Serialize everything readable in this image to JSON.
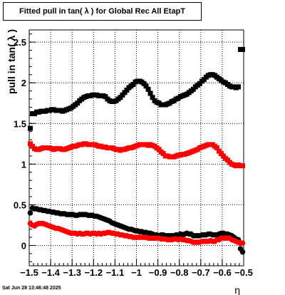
{
  "title": "Fitted pull in tan( λ ) for Global Rec All EtapT",
  "timestamp": "Sat Jun 28 13:46:48 2025",
  "chart_data": {
    "type": "scatter",
    "title": "Fitted pull in tan( λ ) for Global Rec All EtapT",
    "xlabel": "η",
    "ylabel": "pull in tan( λ )",
    "xlim": [
      -1.5,
      -0.5
    ],
    "ylim": [
      -0.25,
      2.65
    ],
    "xticks": [
      -1.5,
      -1.4,
      -1.3,
      -1.2,
      -1.1,
      -1.0,
      -0.9,
      -0.8,
      -0.7,
      -0.6,
      -0.5
    ],
    "xtick_labels": [
      "−1.5",
      "−1.4",
      "−1.3",
      "−1.2",
      "−1.1",
      "−1",
      "−0.9",
      "−0.8",
      "−0.7",
      "−0.6",
      "−0.5"
    ],
    "yticks": [
      0,
      0.5,
      1,
      1.5,
      2,
      2.5
    ],
    "ytick_labels": [
      "0",
      "0.5",
      "1",
      "1.5",
      "2",
      "2.5"
    ],
    "grid": true,
    "series": [
      {
        "marker": "square",
        "color": "#000000",
        "x": [
          -1.495,
          -1.485,
          -1.475,
          -1.465,
          -1.455,
          -1.445,
          -1.435,
          -1.425,
          -1.415,
          -1.405,
          -1.395,
          -1.385,
          -1.375,
          -1.365,
          -1.355,
          -1.345,
          -1.335,
          -1.325,
          -1.315,
          -1.305,
          -1.295,
          -1.285,
          -1.275,
          -1.265,
          -1.255,
          -1.245,
          -1.235,
          -1.225,
          -1.215,
          -1.205,
          -1.195,
          -1.185,
          -1.175,
          -1.165,
          -1.155,
          -1.145,
          -1.135,
          -1.125,
          -1.115,
          -1.105,
          -1.095,
          -1.085,
          -1.075,
          -1.065,
          -1.055,
          -1.045,
          -1.035,
          -1.025,
          -1.015,
          -1.005,
          -0.995,
          -0.985,
          -0.975,
          -0.965,
          -0.955,
          -0.945,
          -0.935,
          -0.925,
          -0.915,
          -0.905,
          -0.895,
          -0.885,
          -0.875,
          -0.865,
          -0.855,
          -0.845,
          -0.835,
          -0.825,
          -0.815,
          -0.805,
          -0.795,
          -0.785,
          -0.775,
          -0.765,
          -0.755,
          -0.745,
          -0.735,
          -0.725,
          -0.715,
          -0.705,
          -0.695,
          -0.685,
          -0.675,
          -0.665,
          -0.655,
          -0.645,
          -0.635,
          -0.625,
          -0.615,
          -0.605,
          -0.595,
          -0.585,
          -0.575,
          -0.565,
          -0.555,
          -0.545,
          -0.535,
          -0.525,
          -0.515,
          -0.505
        ],
        "y": [
          1.44,
          1.62,
          1.62,
          1.64,
          1.64,
          1.65,
          1.65,
          1.65,
          1.66,
          1.66,
          1.67,
          1.67,
          1.66,
          1.66,
          1.66,
          1.65,
          1.66,
          1.67,
          1.68,
          1.69,
          1.71,
          1.73,
          1.75,
          1.78,
          1.8,
          1.82,
          1.83,
          1.84,
          1.84,
          1.85,
          1.85,
          1.85,
          1.84,
          1.84,
          1.84,
          1.83,
          1.8,
          1.78,
          1.77,
          1.77,
          1.78,
          1.8,
          1.82,
          1.85,
          1.88,
          1.91,
          1.94,
          1.96,
          1.98,
          2.01,
          2.02,
          2.02,
          2.01,
          1.99,
          1.96,
          1.92,
          1.87,
          1.82,
          1.78,
          1.76,
          1.75,
          1.73,
          1.73,
          1.73,
          1.74,
          1.75,
          1.77,
          1.78,
          1.8,
          1.81,
          1.83,
          1.84,
          1.85,
          1.86,
          1.88,
          1.9,
          1.92,
          1.95,
          1.97,
          1.99,
          2.02,
          2.04,
          2.07,
          2.09,
          2.1,
          2.1,
          2.09,
          2.07,
          2.05,
          2.03,
          2.01,
          2.0,
          1.98,
          1.96,
          1.95,
          1.95,
          1.94,
          1.95,
          2.41,
          2.41
        ]
      },
      {
        "marker": "square",
        "color": "#ff0000",
        "x": [
          -1.495,
          -1.485,
          -1.475,
          -1.465,
          -1.455,
          -1.445,
          -1.435,
          -1.425,
          -1.415,
          -1.405,
          -1.395,
          -1.385,
          -1.375,
          -1.365,
          -1.355,
          -1.345,
          -1.335,
          -1.325,
          -1.315,
          -1.305,
          -1.295,
          -1.285,
          -1.275,
          -1.265,
          -1.255,
          -1.245,
          -1.235,
          -1.225,
          -1.215,
          -1.205,
          -1.195,
          -1.185,
          -1.175,
          -1.165,
          -1.155,
          -1.145,
          -1.135,
          -1.125,
          -1.115,
          -1.105,
          -1.095,
          -1.085,
          -1.075,
          -1.065,
          -1.055,
          -1.045,
          -1.035,
          -1.025,
          -1.015,
          -1.005,
          -0.995,
          -0.985,
          -0.975,
          -0.965,
          -0.955,
          -0.945,
          -0.935,
          -0.925,
          -0.915,
          -0.905,
          -0.895,
          -0.885,
          -0.875,
          -0.865,
          -0.855,
          -0.845,
          -0.835,
          -0.825,
          -0.815,
          -0.805,
          -0.795,
          -0.785,
          -0.775,
          -0.765,
          -0.755,
          -0.745,
          -0.735,
          -0.725,
          -0.715,
          -0.705,
          -0.695,
          -0.685,
          -0.675,
          -0.665,
          -0.655,
          -0.645,
          -0.635,
          -0.625,
          -0.615,
          -0.605,
          -0.595,
          -0.585,
          -0.575,
          -0.565,
          -0.555,
          -0.545,
          -0.535,
          -0.525,
          -0.515,
          -0.505
        ],
        "y": [
          1.25,
          1.22,
          1.19,
          1.18,
          1.18,
          1.19,
          1.2,
          1.2,
          1.2,
          1.2,
          1.19,
          1.18,
          1.19,
          1.19,
          1.19,
          1.18,
          1.18,
          1.19,
          1.2,
          1.21,
          1.22,
          1.22,
          1.23,
          1.24,
          1.24,
          1.25,
          1.25,
          1.24,
          1.24,
          1.24,
          1.24,
          1.23,
          1.22,
          1.22,
          1.21,
          1.21,
          1.2,
          1.2,
          1.2,
          1.19,
          1.18,
          1.18,
          1.17,
          1.18,
          1.18,
          1.19,
          1.2,
          1.2,
          1.21,
          1.22,
          1.23,
          1.24,
          1.24,
          1.24,
          1.24,
          1.23,
          1.24,
          1.23,
          1.22,
          1.2,
          1.18,
          1.15,
          1.13,
          1.1,
          1.1,
          1.09,
          1.09,
          1.09,
          1.1,
          1.11,
          1.11,
          1.12,
          1.12,
          1.13,
          1.14,
          1.15,
          1.16,
          1.17,
          1.18,
          1.2,
          1.21,
          1.22,
          1.23,
          1.24,
          1.24,
          1.24,
          1.22,
          1.2,
          1.16,
          1.13,
          1.1,
          1.07,
          1.05,
          1.02,
          1.0,
          0.99,
          0.98,
          0.99,
          0.98,
          0.98
        ]
      },
      {
        "marker": "circle",
        "color": "#000000",
        "x": [
          -1.495,
          -1.485,
          -1.475,
          -1.465,
          -1.455,
          -1.445,
          -1.435,
          -1.425,
          -1.415,
          -1.405,
          -1.395,
          -1.385,
          -1.375,
          -1.365,
          -1.355,
          -1.345,
          -1.335,
          -1.325,
          -1.315,
          -1.305,
          -1.295,
          -1.285,
          -1.275,
          -1.265,
          -1.255,
          -1.245,
          -1.235,
          -1.225,
          -1.215,
          -1.205,
          -1.195,
          -1.185,
          -1.175,
          -1.165,
          -1.155,
          -1.145,
          -1.135,
          -1.125,
          -1.115,
          -1.105,
          -1.095,
          -1.085,
          -1.075,
          -1.065,
          -1.055,
          -1.045,
          -1.035,
          -1.025,
          -1.015,
          -1.005,
          -0.995,
          -0.985,
          -0.975,
          -0.965,
          -0.955,
          -0.945,
          -0.935,
          -0.925,
          -0.915,
          -0.905,
          -0.895,
          -0.885,
          -0.875,
          -0.865,
          -0.855,
          -0.845,
          -0.835,
          -0.825,
          -0.815,
          -0.805,
          -0.795,
          -0.785,
          -0.775,
          -0.765,
          -0.755,
          -0.745,
          -0.735,
          -0.725,
          -0.715,
          -0.705,
          -0.695,
          -0.685,
          -0.675,
          -0.665,
          -0.655,
          -0.645,
          -0.635,
          -0.625,
          -0.615,
          -0.605,
          -0.595,
          -0.585,
          -0.575,
          -0.565,
          -0.555,
          -0.545,
          -0.535,
          -0.525,
          -0.515,
          -0.505
        ],
        "y": [
          0.4,
          0.46,
          0.45,
          0.45,
          0.44,
          0.44,
          0.43,
          0.43,
          0.42,
          0.42,
          0.41,
          0.41,
          0.4,
          0.4,
          0.39,
          0.39,
          0.39,
          0.38,
          0.38,
          0.38,
          0.38,
          0.37,
          0.37,
          0.38,
          0.38,
          0.38,
          0.38,
          0.37,
          0.37,
          0.37,
          0.36,
          0.36,
          0.35,
          0.34,
          0.33,
          0.32,
          0.31,
          0.3,
          0.28,
          0.27,
          0.26,
          0.25,
          0.24,
          0.23,
          0.22,
          0.21,
          0.2,
          0.2,
          0.19,
          0.18,
          0.18,
          0.17,
          0.17,
          0.16,
          0.16,
          0.15,
          0.15,
          0.14,
          0.13,
          0.13,
          0.12,
          0.13,
          0.13,
          0.12,
          0.12,
          0.12,
          0.12,
          0.12,
          0.13,
          0.13,
          0.14,
          0.13,
          0.14,
          0.15,
          0.14,
          0.14,
          0.12,
          0.12,
          0.12,
          0.12,
          0.13,
          0.13,
          0.13,
          0.14,
          0.14,
          0.13,
          0.13,
          0.13,
          0.14,
          0.15,
          0.15,
          0.14,
          0.14,
          0.13,
          0.12,
          0.1,
          0.08,
          0.07,
          -0.04,
          -0.08
        ]
      },
      {
        "marker": "circle",
        "color": "#ff0000",
        "x": [
          -1.495,
          -1.485,
          -1.475,
          -1.465,
          -1.455,
          -1.445,
          -1.435,
          -1.425,
          -1.415,
          -1.405,
          -1.395,
          -1.385,
          -1.375,
          -1.365,
          -1.355,
          -1.345,
          -1.335,
          -1.325,
          -1.315,
          -1.305,
          -1.295,
          -1.285,
          -1.275,
          -1.265,
          -1.255,
          -1.245,
          -1.235,
          -1.225,
          -1.215,
          -1.205,
          -1.195,
          -1.185,
          -1.175,
          -1.165,
          -1.155,
          -1.145,
          -1.135,
          -1.125,
          -1.115,
          -1.105,
          -1.095,
          -1.085,
          -1.075,
          -1.065,
          -1.055,
          -1.045,
          -1.035,
          -1.025,
          -1.015,
          -1.005,
          -0.995,
          -0.985,
          -0.975,
          -0.965,
          -0.955,
          -0.945,
          -0.935,
          -0.925,
          -0.915,
          -0.905,
          -0.895,
          -0.885,
          -0.875,
          -0.865,
          -0.855,
          -0.845,
          -0.835,
          -0.825,
          -0.815,
          -0.805,
          -0.795,
          -0.785,
          -0.775,
          -0.765,
          -0.755,
          -0.745,
          -0.735,
          -0.725,
          -0.715,
          -0.705,
          -0.695,
          -0.685,
          -0.675,
          -0.665,
          -0.655,
          -0.645,
          -0.635,
          -0.625,
          -0.615,
          -0.605,
          -0.595,
          -0.585,
          -0.575,
          -0.565,
          -0.555,
          -0.545,
          -0.535,
          -0.525,
          -0.515,
          -0.505
        ],
        "y": [
          0.27,
          0.25,
          0.24,
          0.26,
          0.27,
          0.27,
          0.27,
          0.26,
          0.25,
          0.24,
          0.23,
          0.22,
          0.21,
          0.21,
          0.2,
          0.19,
          0.18,
          0.17,
          0.16,
          0.15,
          0.15,
          0.15,
          0.14,
          0.15,
          0.14,
          0.14,
          0.15,
          0.15,
          0.14,
          0.15,
          0.15,
          0.14,
          0.15,
          0.14,
          0.15,
          0.15,
          0.16,
          0.16,
          0.15,
          0.15,
          0.14,
          0.14,
          0.13,
          0.13,
          0.12,
          0.12,
          0.11,
          0.11,
          0.1,
          0.1,
          0.1,
          0.1,
          0.1,
          0.1,
          0.1,
          0.09,
          0.09,
          0.09,
          0.09,
          0.09,
          0.09,
          0.08,
          0.08,
          0.08,
          0.07,
          0.07,
          0.07,
          0.08,
          0.08,
          0.07,
          0.08,
          0.07,
          0.07,
          0.06,
          0.06,
          0.05,
          0.04,
          0.04,
          0.04,
          0.04,
          0.05,
          0.05,
          0.05,
          0.05,
          0.06,
          0.05,
          0.05,
          0.07,
          0.07,
          0.09,
          0.09,
          0.09,
          0.09,
          0.09,
          0.07,
          0.06,
          0.05,
          0.04,
          0.03,
          0.03
        ]
      }
    ]
  }
}
